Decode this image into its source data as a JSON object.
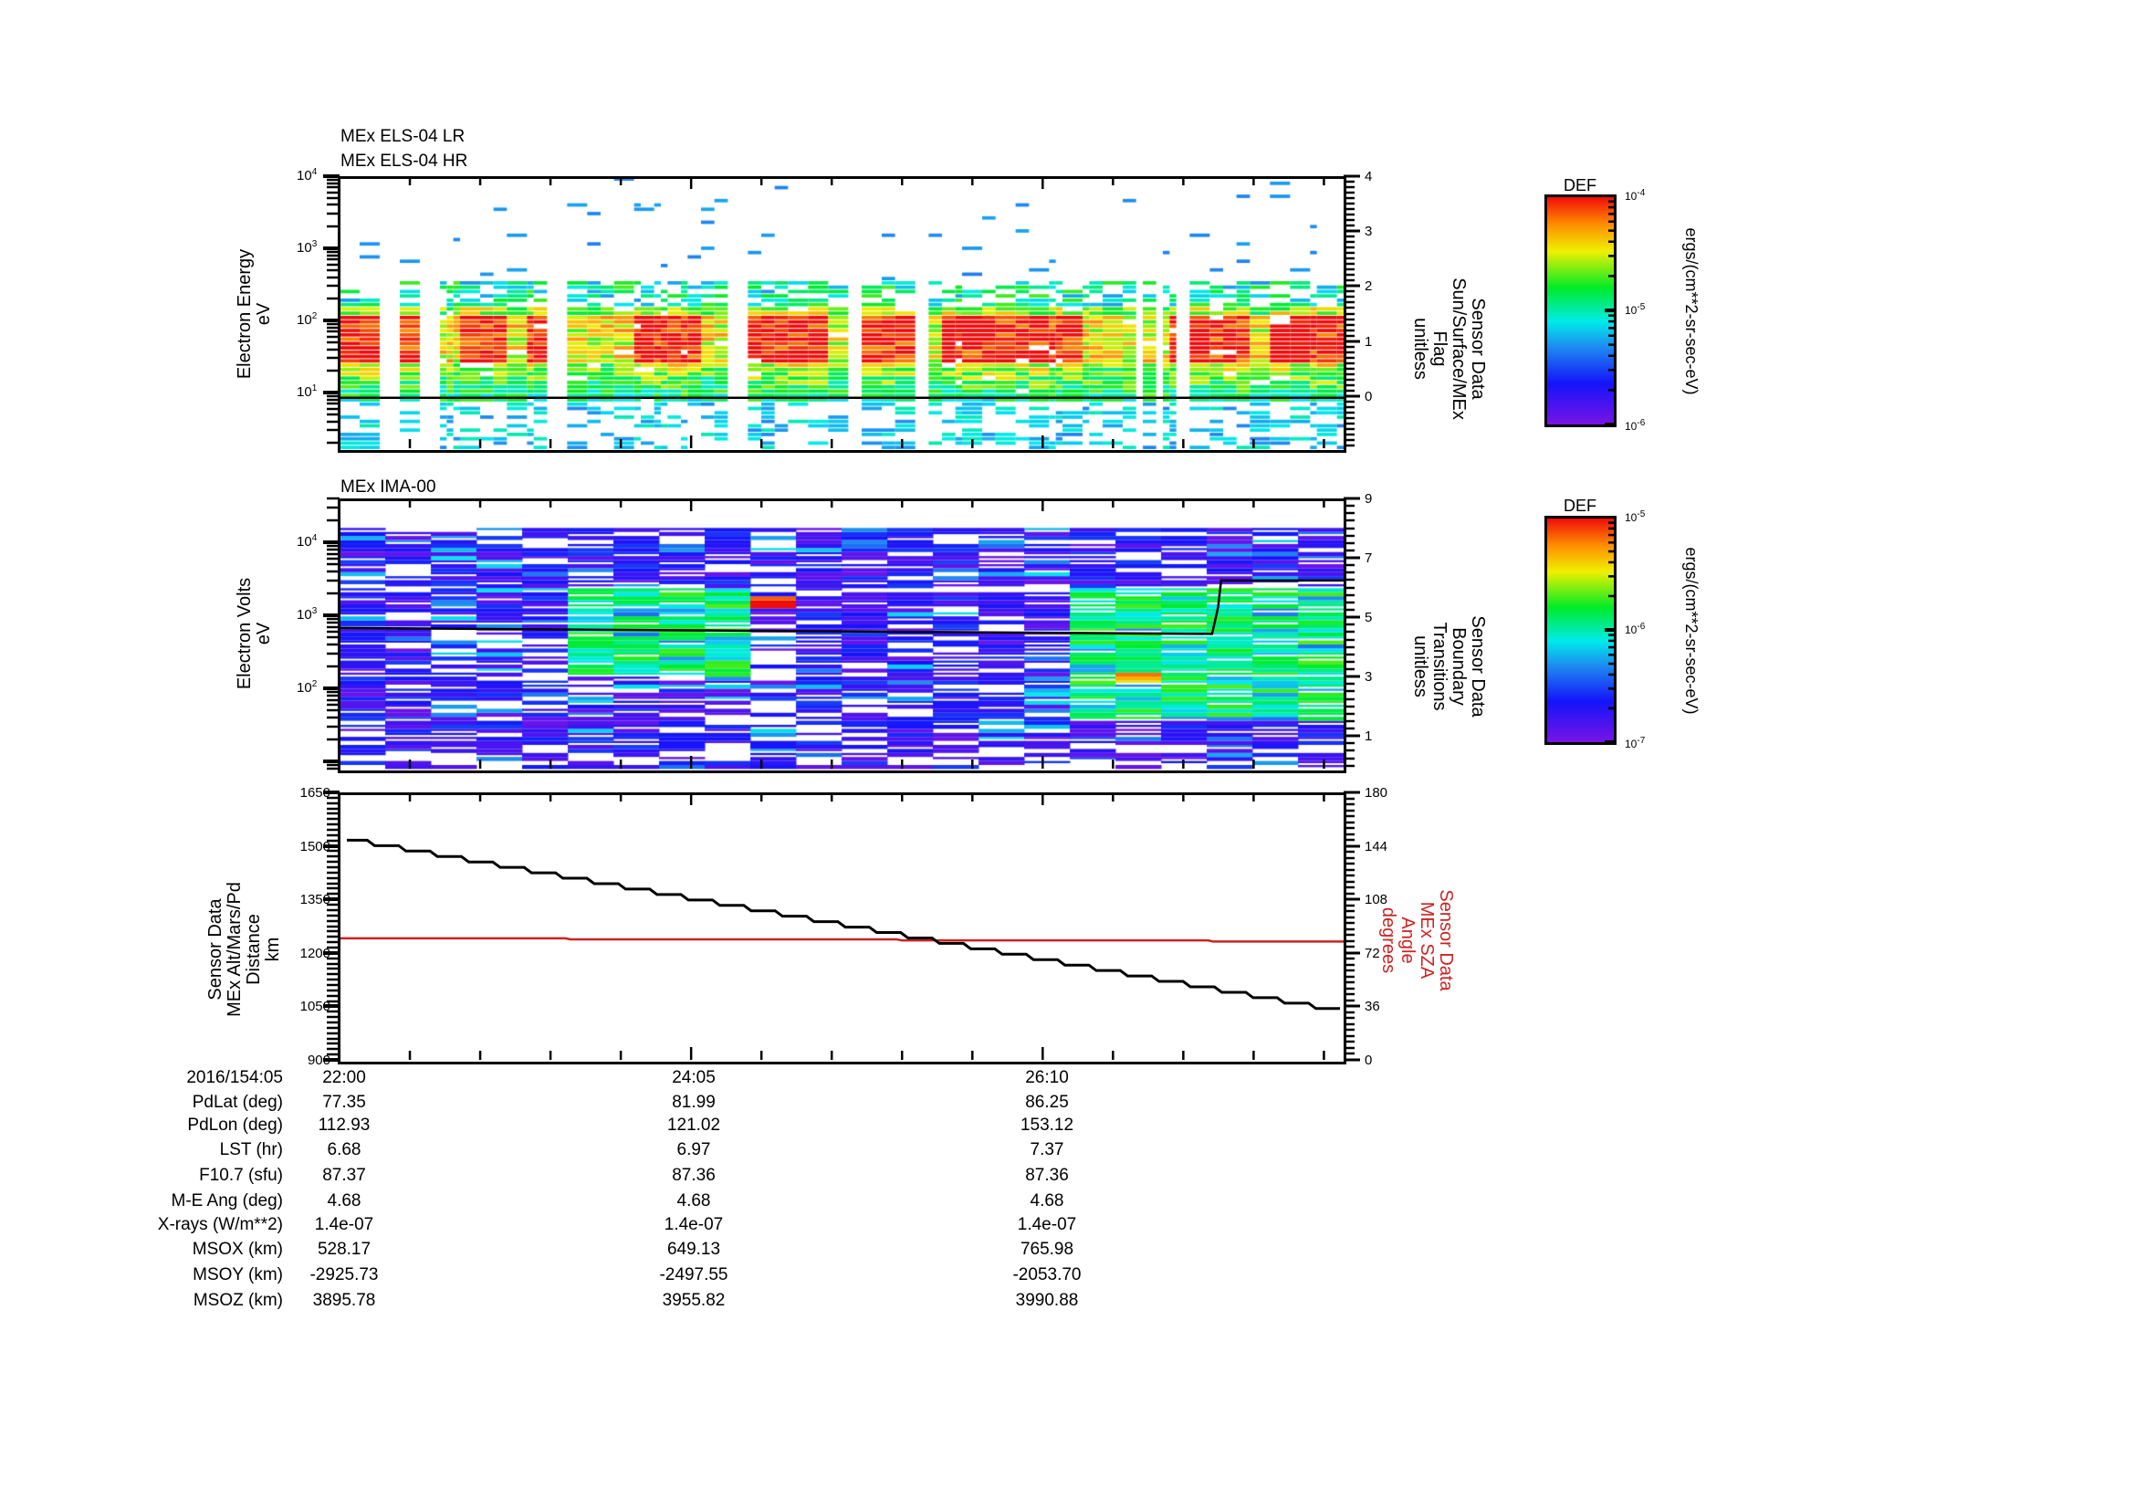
{
  "chart_data": [
    {
      "type": "heatmap",
      "panel": "els",
      "titles": [
        "MEx ELS-04 LR",
        "MEx ELS-04 HR"
      ],
      "ylabel": [
        "Electron Energy",
        "eV"
      ],
      "yscale": "log",
      "ylim": [
        1.7,
        10000
      ],
      "yticks": [
        {
          "exp": "4",
          "value": 10000
        },
        {
          "exp": "3",
          "value": 1000
        },
        {
          "exp": "2",
          "value": 100
        },
        {
          "exp": "1",
          "value": 10
        }
      ],
      "right_axis": {
        "label": [
          "Sensor Data",
          "Sun/Surface/MEx",
          "Flag",
          "unitless"
        ],
        "ticks": [
          "4",
          "3",
          "2",
          "1",
          "0"
        ],
        "ylim": [
          -0.95,
          4
        ],
        "line_value": 0
      },
      "colorbar": {
        "title": "DEF",
        "ticks": [
          {
            "base": "10",
            "exp": "-4"
          },
          {
            "base": "10",
            "exp": "-5"
          },
          {
            "base": "10",
            "exp": "-6"
          }
        ],
        "range": [
          1e-06,
          0.0001
        ],
        "unit": "ergs/(cm**2-sr-sec-eV)"
      },
      "structure": {
        "dense_band_eV": [
          7,
          150
        ],
        "peak_band_eV": [
          25,
          110
        ],
        "sparse_high_eV": [
          150,
          10000
        ],
        "sparse_low_eV": [
          1.7,
          7
        ],
        "hot_columns_t": [
          0.02,
          0.07,
          0.14,
          0.2,
          0.3,
          0.33,
          0.42,
          0.45,
          0.52,
          0.56,
          0.62,
          0.66,
          0.7,
          0.85,
          0.88,
          0.95,
          0.98
        ],
        "gap_columns_t": [
          0.04,
          0.085,
          0.21,
          0.215,
          0.39,
          0.395,
          0.51,
          0.575,
          0.68,
          0.79,
          0.81,
          0.835,
          0.915
        ]
      }
    },
    {
      "type": "heatmap",
      "panel": "ima",
      "titles": [
        "MEx IMA-00"
      ],
      "ylabel": [
        "Electron Volts",
        "eV"
      ],
      "yscale": "log",
      "ylim": [
        8,
        40000
      ],
      "yticks": [
        {
          "exp": "4",
          "value": 10000
        },
        {
          "exp": "3",
          "value": 1000
        },
        {
          "exp": "2",
          "value": 100
        }
      ],
      "right_axis": {
        "label": [
          "Sensor Data",
          "Boundary",
          "Transitions",
          "unitless"
        ],
        "ticks": [
          "9",
          "7",
          "5",
          "3",
          "1"
        ],
        "ylim": [
          -0.1,
          9
        ],
        "line": [
          {
            "t": 0.0,
            "v": 4.7
          },
          {
            "t": 0.869,
            "v": 4.5
          },
          {
            "t": 0.875,
            "v": 5.4
          },
          {
            "t": 0.878,
            "v": 6.3
          },
          {
            "t": 1.0,
            "v": 6.3
          }
        ]
      },
      "colorbar": {
        "title": "DEF",
        "ticks": [
          {
            "base": "10",
            "exp": "-5"
          },
          {
            "base": "10",
            "exp": "-6"
          },
          {
            "base": "10",
            "exp": "-7"
          }
        ],
        "range": [
          1e-07,
          1e-05
        ],
        "unit": "ergs/(cm**2-sr-sec-eV)"
      },
      "structure": {
        "data_top_eV": 15000,
        "active_regions": [
          {
            "t0": 0.22,
            "t1": 0.42,
            "e0": 150,
            "e1": 2500,
            "level": 0.55
          },
          {
            "t0": 0.42,
            "t1": 0.45,
            "e0": 1300,
            "e1": 2000,
            "level": 0.98
          },
          {
            "t0": 0.75,
            "t1": 1.0,
            "e0": 40,
            "e1": 2500,
            "level": 0.55
          },
          {
            "t0": 0.78,
            "t1": 0.81,
            "e0": 100,
            "e1": 180,
            "level": 0.85
          }
        ]
      }
    },
    {
      "type": "line",
      "panel": "altitude_sza",
      "ylabel": [
        "Sensor Data",
        "MEx Alt/Mars/Pd",
        "Distance",
        "km"
      ],
      "ylim": [
        900,
        1650
      ],
      "yticks": [
        "1650",
        "1500",
        "1350",
        "1200",
        "1050",
        "900"
      ],
      "right_axis": {
        "label": [
          "Sensor Data",
          "MEx SZA",
          "Angle",
          "degrees"
        ],
        "ylim": [
          0,
          180
        ],
        "ticks": [
          "180",
          "144",
          "108",
          "72",
          "36",
          "0"
        ],
        "color": "#cc2222"
      },
      "series": [
        {
          "name": "MEx Alt/Mars/Pd Distance (km)",
          "axis": "left",
          "color": "#000000",
          "step": true,
          "t": [
            0.0,
            1.0
          ],
          "values": [
            1521,
            1049
          ],
          "steps": 32
        },
        {
          "name": "MEx SZA Angle (degrees)",
          "axis": "right",
          "color": "#cc2222",
          "t": [
            0.0,
            0.225,
            0.23,
            0.555,
            0.56,
            0.865,
            0.87,
            1.0
          ],
          "values": [
            83.0,
            83.0,
            82.3,
            82.3,
            81.6,
            81.6,
            80.9,
            80.9
          ]
        }
      ]
    }
  ],
  "time_axis": {
    "date_label": "2016/154:05",
    "start_s": 0,
    "end_s": 357,
    "tick_every_s": 25,
    "labeled": [
      {
        "label": "22:00",
        "t_s": 0
      },
      {
        "label": "24:05",
        "t_s": 125
      },
      {
        "label": "26:10",
        "t_s": 250
      }
    ]
  },
  "ephemeris": {
    "rows": [
      {
        "label": "PdLat (deg)",
        "values": [
          "77.35",
          "81.99",
          "86.25"
        ]
      },
      {
        "label": "PdLon (deg)",
        "values": [
          "112.93",
          "121.02",
          "153.12"
        ]
      },
      {
        "label": "LST (hr)",
        "values": [
          "6.68",
          "6.97",
          "7.37"
        ]
      },
      {
        "label": "F10.7 (sfu)",
        "values": [
          "87.37",
          "87.36",
          "87.36"
        ]
      },
      {
        "label": "M-E Ang (deg)",
        "values": [
          "4.68",
          "4.68",
          "4.68"
        ]
      },
      {
        "label": "X-rays (W/m**2)",
        "values": [
          "1.4e-07",
          "1.4e-07",
          "1.4e-07"
        ]
      },
      {
        "label": "MSOX (km)",
        "values": [
          "528.17",
          "649.13",
          "765.98"
        ]
      },
      {
        "label": "MSOY (km)",
        "values": [
          "-2925.73",
          "-2497.55",
          "-2053.70"
        ]
      },
      {
        "label": "MSOZ (km)",
        "values": [
          "3895.78",
          "3955.82",
          "3990.88"
        ]
      }
    ]
  },
  "colors": {
    "sza_line": "#cc2222",
    "axis": "#000000"
  }
}
